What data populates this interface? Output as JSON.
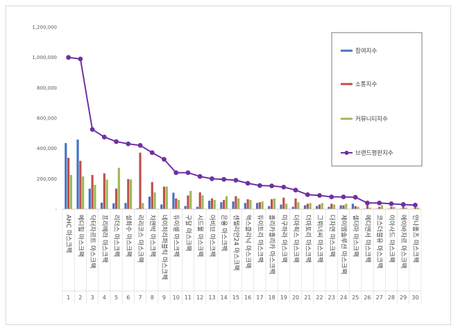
{
  "chart_data": {
    "type": "bar",
    "title": "",
    "xlabel": "",
    "ylabel": "",
    "ylim": [
      0,
      1200000
    ],
    "yticks": [
      0,
      200000,
      400000,
      600000,
      800000,
      1000000,
      1200000
    ],
    "ytick_labels": [
      "-",
      "200,000",
      "400,000",
      "600,000",
      "800,000",
      "1,000,000",
      "1,200,000"
    ],
    "legend_position": "top-right",
    "grid": false,
    "categories": [
      "AHC 마스크팩",
      "메디힐 마스크팩",
      "닥터자르트 마스크팩",
      "프리메라 마스크팩",
      "리더스 마스크팩",
      "설화수 마스크팩",
      "리리코스 마스크팩",
      "차앤박 마스크팩",
      "네이처리퍼블릭 마스크팩",
      "듀이셀 마스크팩",
      "구달 마스크팩",
      "시드물 마스크팩",
      "아비브 마스크팩",
      "은율 마스크팩",
      "센텔리안24 마스크팩",
      "맥스클리닉 마스크팩",
      "듀이트리 마스크팩",
      "홀리카홀리카 마스크팩",
      "미구하라 마스크팩",
      "더마픽스 마스크팩",
      "더마토리 마스크팩",
      "그뤼너씨 마스크팩",
      "다자연 마스크팩",
      "제이엠솔루션 마스크팩",
      "셀더마 마스크팩",
      "메디엔서 마스크팩",
      "코스더블유 마스크팩",
      "이아사드 마스크팩",
      "에이바자르 마스크팩",
      "안나홀츠 마스크팩"
    ],
    "category_numbers": [
      "1",
      "2",
      "3",
      "4",
      "5",
      "6",
      "7",
      "8",
      "9",
      "10",
      "11",
      "12",
      "13",
      "14",
      "15",
      "16",
      "17",
      "18",
      "19",
      "20",
      "21",
      "22",
      "23",
      "24",
      "25",
      "26",
      "27",
      "28",
      "29",
      "30"
    ],
    "series": [
      {
        "name": "참여지수",
        "type": "bar",
        "color": "#4472c4",
        "values": [
          435000,
          458000,
          135000,
          42000,
          38000,
          40000,
          5000,
          82000,
          30000,
          108000,
          20000,
          15000,
          55000,
          45000,
          50000,
          40000,
          40000,
          20000,
          30000,
          15000,
          25000,
          20000,
          15000,
          25000,
          35000,
          3000,
          3000,
          3000,
          3000,
          2000
        ]
      },
      {
        "name": "소통지수",
        "type": "bar",
        "color": "#c0504d",
        "values": [
          338000,
          318000,
          225000,
          235000,
          135000,
          198000,
          372000,
          178000,
          148000,
          70000,
          90000,
          110000,
          70000,
          60000,
          85000,
          65000,
          45000,
          65000,
          75000,
          70000,
          35000,
          30000,
          35000,
          25000,
          20000,
          25000,
          15000,
          15000,
          15000,
          10000
        ]
      },
      {
        "name": "커뮤니티지수",
        "type": "bar",
        "color": "#9bbb59",
        "values": [
          225000,
          215000,
          160000,
          195000,
          272000,
          195000,
          40000,
          110000,
          148000,
          60000,
          120000,
          90000,
          60000,
          85000,
          70000,
          60000,
          50000,
          70000,
          35000,
          45000,
          40000,
          40000,
          30000,
          35000,
          15000,
          10000,
          25000,
          15000,
          10000,
          10000
        ]
      },
      {
        "name": "브랜드평판지수",
        "type": "line",
        "color": "#7030a0",
        "values": [
          1000000,
          990000,
          525000,
          475000,
          445000,
          430000,
          420000,
          372000,
          328000,
          240000,
          240000,
          215000,
          200000,
          196000,
          190000,
          170000,
          155000,
          153000,
          145000,
          125000,
          95000,
          90000,
          80000,
          80000,
          78000,
          40000,
          40000,
          35000,
          30000,
          26000
        ]
      }
    ]
  }
}
